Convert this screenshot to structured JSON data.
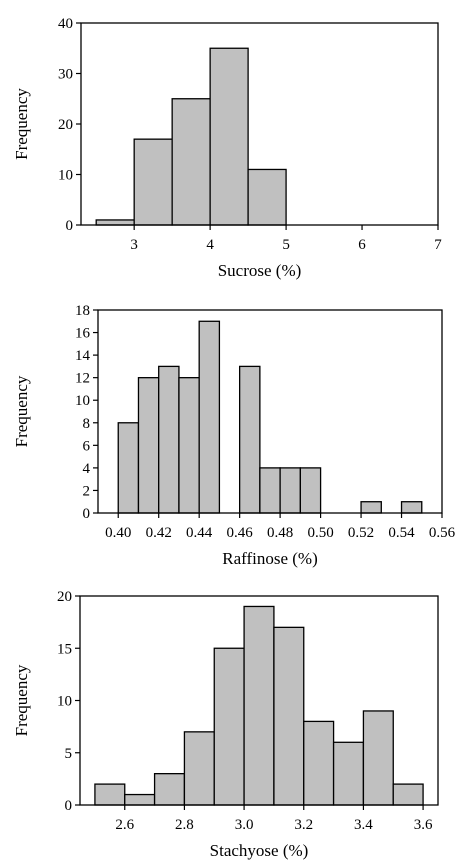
{
  "chart_data": [
    {
      "type": "bar",
      "title": "",
      "xlabel": "Sucrose (%)",
      "ylabel": "Frequency",
      "bin_edges": [
        2.5,
        3.0,
        3.5,
        4.0,
        4.5,
        5.0
      ],
      "values": [
        1,
        17,
        25,
        35,
        11
      ],
      "xlim": [
        2.3,
        7.0
      ],
      "ylim": [
        0,
        40
      ],
      "xticks": [
        3,
        4,
        5,
        6,
        7
      ],
      "xtick_labels": [
        "3",
        "4",
        "5",
        "6",
        "7"
      ],
      "yticks": [
        0,
        10,
        20,
        30,
        40
      ],
      "ytick_labels": [
        "0",
        "10",
        "20",
        "30",
        "40"
      ],
      "grid": false,
      "bar_color": "#c0c0c0"
    },
    {
      "type": "bar",
      "title": "",
      "xlabel": "Raffinose (%)",
      "ylabel": "Frequency",
      "bin_edges": [
        0.4,
        0.41,
        0.42,
        0.43,
        0.44,
        0.45,
        0.46,
        0.47,
        0.48,
        0.49,
        0.5,
        0.51,
        0.52,
        0.53,
        0.54,
        0.55
      ],
      "values": [
        8,
        12,
        13,
        12,
        17,
        0,
        13,
        4,
        4,
        4,
        0,
        0,
        1,
        0,
        1
      ],
      "xlim": [
        0.39,
        0.56
      ],
      "ylim": [
        0,
        18
      ],
      "xticks": [
        0.4,
        0.42,
        0.44,
        0.46,
        0.48,
        0.5,
        0.52,
        0.54,
        0.56
      ],
      "xtick_labels": [
        "0.40",
        "0.42",
        "0.44",
        "0.46",
        "0.48",
        "0.50",
        "0.52",
        "0.54",
        "0.56"
      ],
      "yticks": [
        0,
        2,
        4,
        6,
        8,
        10,
        12,
        14,
        16,
        18
      ],
      "ytick_labels": [
        "0",
        "2",
        "4",
        "6",
        "8",
        "10",
        "12",
        "14",
        "16",
        "18"
      ],
      "grid": false,
      "bar_color": "#c0c0c0"
    },
    {
      "type": "bar",
      "title": "",
      "xlabel": "Stachyose (%)",
      "ylabel": "Frequency",
      "bin_edges": [
        2.5,
        2.6,
        2.7,
        2.8,
        2.9,
        3.0,
        3.1,
        3.2,
        3.3,
        3.4,
        3.5,
        3.6
      ],
      "values": [
        2,
        1,
        3,
        7,
        15,
        19,
        17,
        8,
        6,
        9,
        2
      ],
      "xlim": [
        2.45,
        3.65
      ],
      "ylim": [
        0,
        20
      ],
      "xticks": [
        2.6,
        2.8,
        3.0,
        3.2,
        3.4,
        3.6
      ],
      "xtick_labels": [
        "2.6",
        "2.8",
        "3.0",
        "3.2",
        "3.4",
        "3.6"
      ],
      "yticks": [
        0,
        5,
        10,
        15,
        20
      ],
      "ytick_labels": [
        "0",
        "5",
        "10",
        "15",
        "20"
      ],
      "grid": false,
      "bar_color": "#c0c0c0"
    }
  ]
}
